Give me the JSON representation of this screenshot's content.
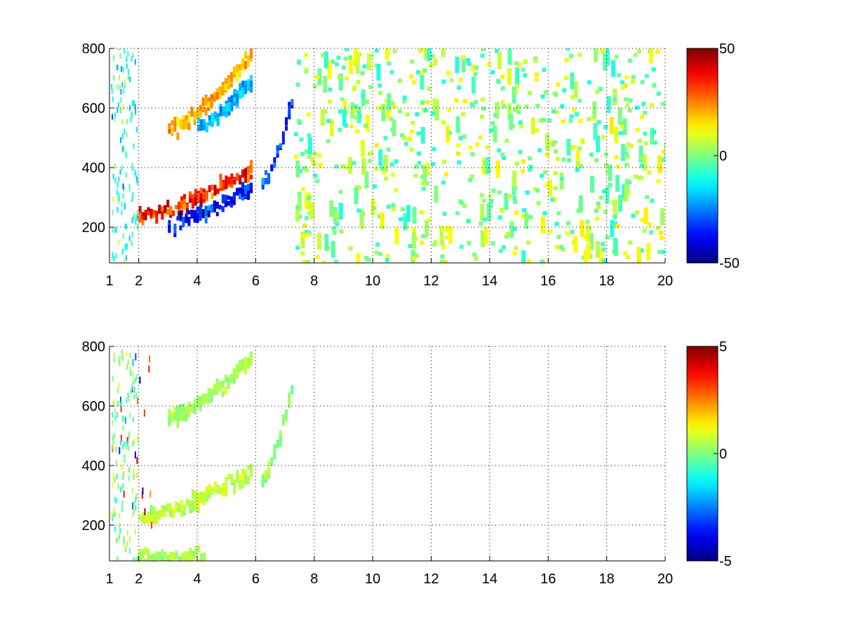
{
  "figure": {
    "panels": [
      {
        "id": "top",
        "xlim": [
          1,
          20
        ],
        "ylim": [
          80,
          800
        ],
        "xticks": [
          1,
          2,
          4,
          6,
          8,
          10,
          12,
          14,
          16,
          18,
          20
        ],
        "yticks": [
          200,
          400,
          600,
          800
        ],
        "grid": true,
        "colorbar": {
          "clim": [
            -50,
            50
          ],
          "ticks": [
            50,
            0,
            -50
          ],
          "colormap": "jet"
        }
      },
      {
        "id": "bottom",
        "xlim": [
          1,
          20
        ],
        "ylim": [
          80,
          800
        ],
        "xticks": [
          1,
          2,
          4,
          6,
          8,
          10,
          12,
          14,
          16,
          18,
          20
        ],
        "yticks": [
          200,
          400,
          600,
          800
        ],
        "grid": true,
        "colorbar": {
          "clim": [
            -5,
            5
          ],
          "ticks": [
            5,
            0,
            -5
          ],
          "colormap": "jet"
        }
      }
    ]
  },
  "chart_data": [
    {
      "type": "heatmap",
      "title": "",
      "xlabel": "",
      "ylabel": "",
      "xlim": [
        1,
        20
      ],
      "ylim": [
        80,
        800
      ],
      "clim": [
        -50,
        50
      ],
      "colormap": "jet",
      "grid": true,
      "features": [
        {
          "kind": "band",
          "x_range": [
            2.0,
            5.8
          ],
          "y_start": 235,
          "y_end": 390,
          "value": 45
        },
        {
          "kind": "band",
          "x_range": [
            3.0,
            5.8
          ],
          "y_start": 210,
          "y_end": 330,
          "value": -45
        },
        {
          "kind": "band",
          "x_range": [
            3.0,
            5.8
          ],
          "y_start": 525,
          "y_end": 780,
          "value": 25
        },
        {
          "kind": "band",
          "x_range": [
            4.0,
            5.8
          ],
          "y_start": 540,
          "y_end": 690,
          "value": -25
        },
        {
          "kind": "band",
          "x_range": [
            6.2,
            7.2
          ],
          "y_start": 340,
          "y_end": 620,
          "value": -40
        },
        {
          "kind": "scatter_noise",
          "x_range": [
            7.3,
            20
          ],
          "y_range": [
            80,
            800
          ],
          "value_range": [
            -10,
            15
          ]
        }
      ]
    },
    {
      "type": "heatmap",
      "title": "",
      "xlabel": "",
      "ylabel": "",
      "xlim": [
        1,
        20
      ],
      "ylim": [
        80,
        800
      ],
      "clim": [
        -5,
        5
      ],
      "colormap": "jet",
      "grid": true,
      "features": [
        {
          "kind": "band",
          "x_range": [
            2.0,
            5.8
          ],
          "y_start": 220,
          "y_end": 380,
          "value": 0.8
        },
        {
          "kind": "band",
          "x_range": [
            3.0,
            5.8
          ],
          "y_start": 560,
          "y_end": 760,
          "value": 0.5
        },
        {
          "kind": "band",
          "x_range": [
            6.2,
            7.2
          ],
          "y_start": 350,
          "y_end": 660,
          "value": 0.3
        },
        {
          "kind": "band",
          "x_range": [
            2.0,
            4.2
          ],
          "y_start": 88,
          "y_end": 88,
          "value": 0.6
        },
        {
          "kind": "outliers",
          "x_range": [
            1.0,
            2.5
          ],
          "y_range": [
            100,
            780
          ],
          "value_range": [
            -5,
            5
          ]
        }
      ]
    }
  ]
}
